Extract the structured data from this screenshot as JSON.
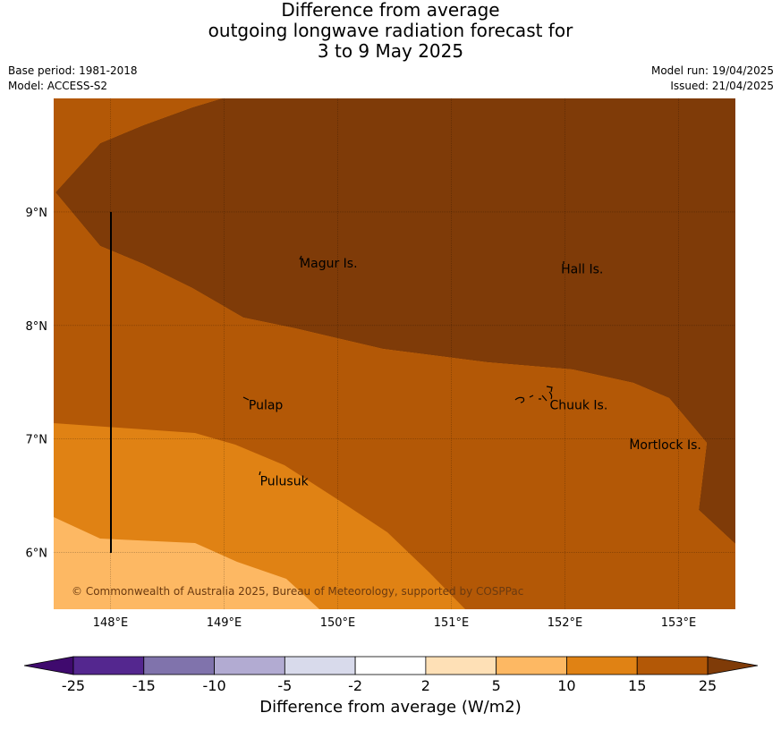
{
  "title": {
    "line1": "Difference from average",
    "line2": "outgoing longwave radiation forecast for",
    "line3": "3 to 9 May 2025"
  },
  "meta": {
    "base_period": "Base period: 1981-2018",
    "model": "Model: ACCESS-S2",
    "model_run": "Model run: 19/04/2025",
    "issued": "Issued: 21/04/2025"
  },
  "map": {
    "lon_ticks": [
      "148°E",
      "149°E",
      "150°E",
      "151°E",
      "152°E",
      "153°E"
    ],
    "lat_ticks": [
      "9°N",
      "8°N",
      "7°N",
      "6°N"
    ],
    "places": [
      {
        "name": "Magur Is.",
        "lon": 149.65,
        "lat": 8.55
      },
      {
        "name": "Hall Is.",
        "lon": 151.95,
        "lat": 8.5
      },
      {
        "name": "Pulap",
        "lon": 149.2,
        "lat": 7.3
      },
      {
        "name": "Chuuk Is.",
        "lon": 151.85,
        "lat": 7.3
      },
      {
        "name": "Mortlock Is.",
        "lon": 152.55,
        "lat": 6.95
      },
      {
        "name": "Pulusuk",
        "lon": 149.3,
        "lat": 6.63
      }
    ],
    "copyright": "© Commonwealth of Australia 2025, Bureau of Meteorology, supported by COSPPac"
  },
  "legend": {
    "title": "Difference from average (W/m2)",
    "ticks": [
      "-25",
      "-15",
      "-10",
      "-5",
      "-2",
      "2",
      "5",
      "10",
      "15",
      "25"
    ],
    "colors": [
      "#3f0a6e",
      "#54278f",
      "#8073ac",
      "#b2abd2",
      "#d8daeb",
      "#ffffff",
      "#fee0b6",
      "#fdb863",
      "#e08214",
      "#b35806",
      "#7f3b08"
    ]
  },
  "field_colors": {
    "10_to_15": "#e08214",
    "15_to_25": "#b35806",
    "above_25": "#7f3b08",
    "5_to_10": "#fdb863"
  }
}
